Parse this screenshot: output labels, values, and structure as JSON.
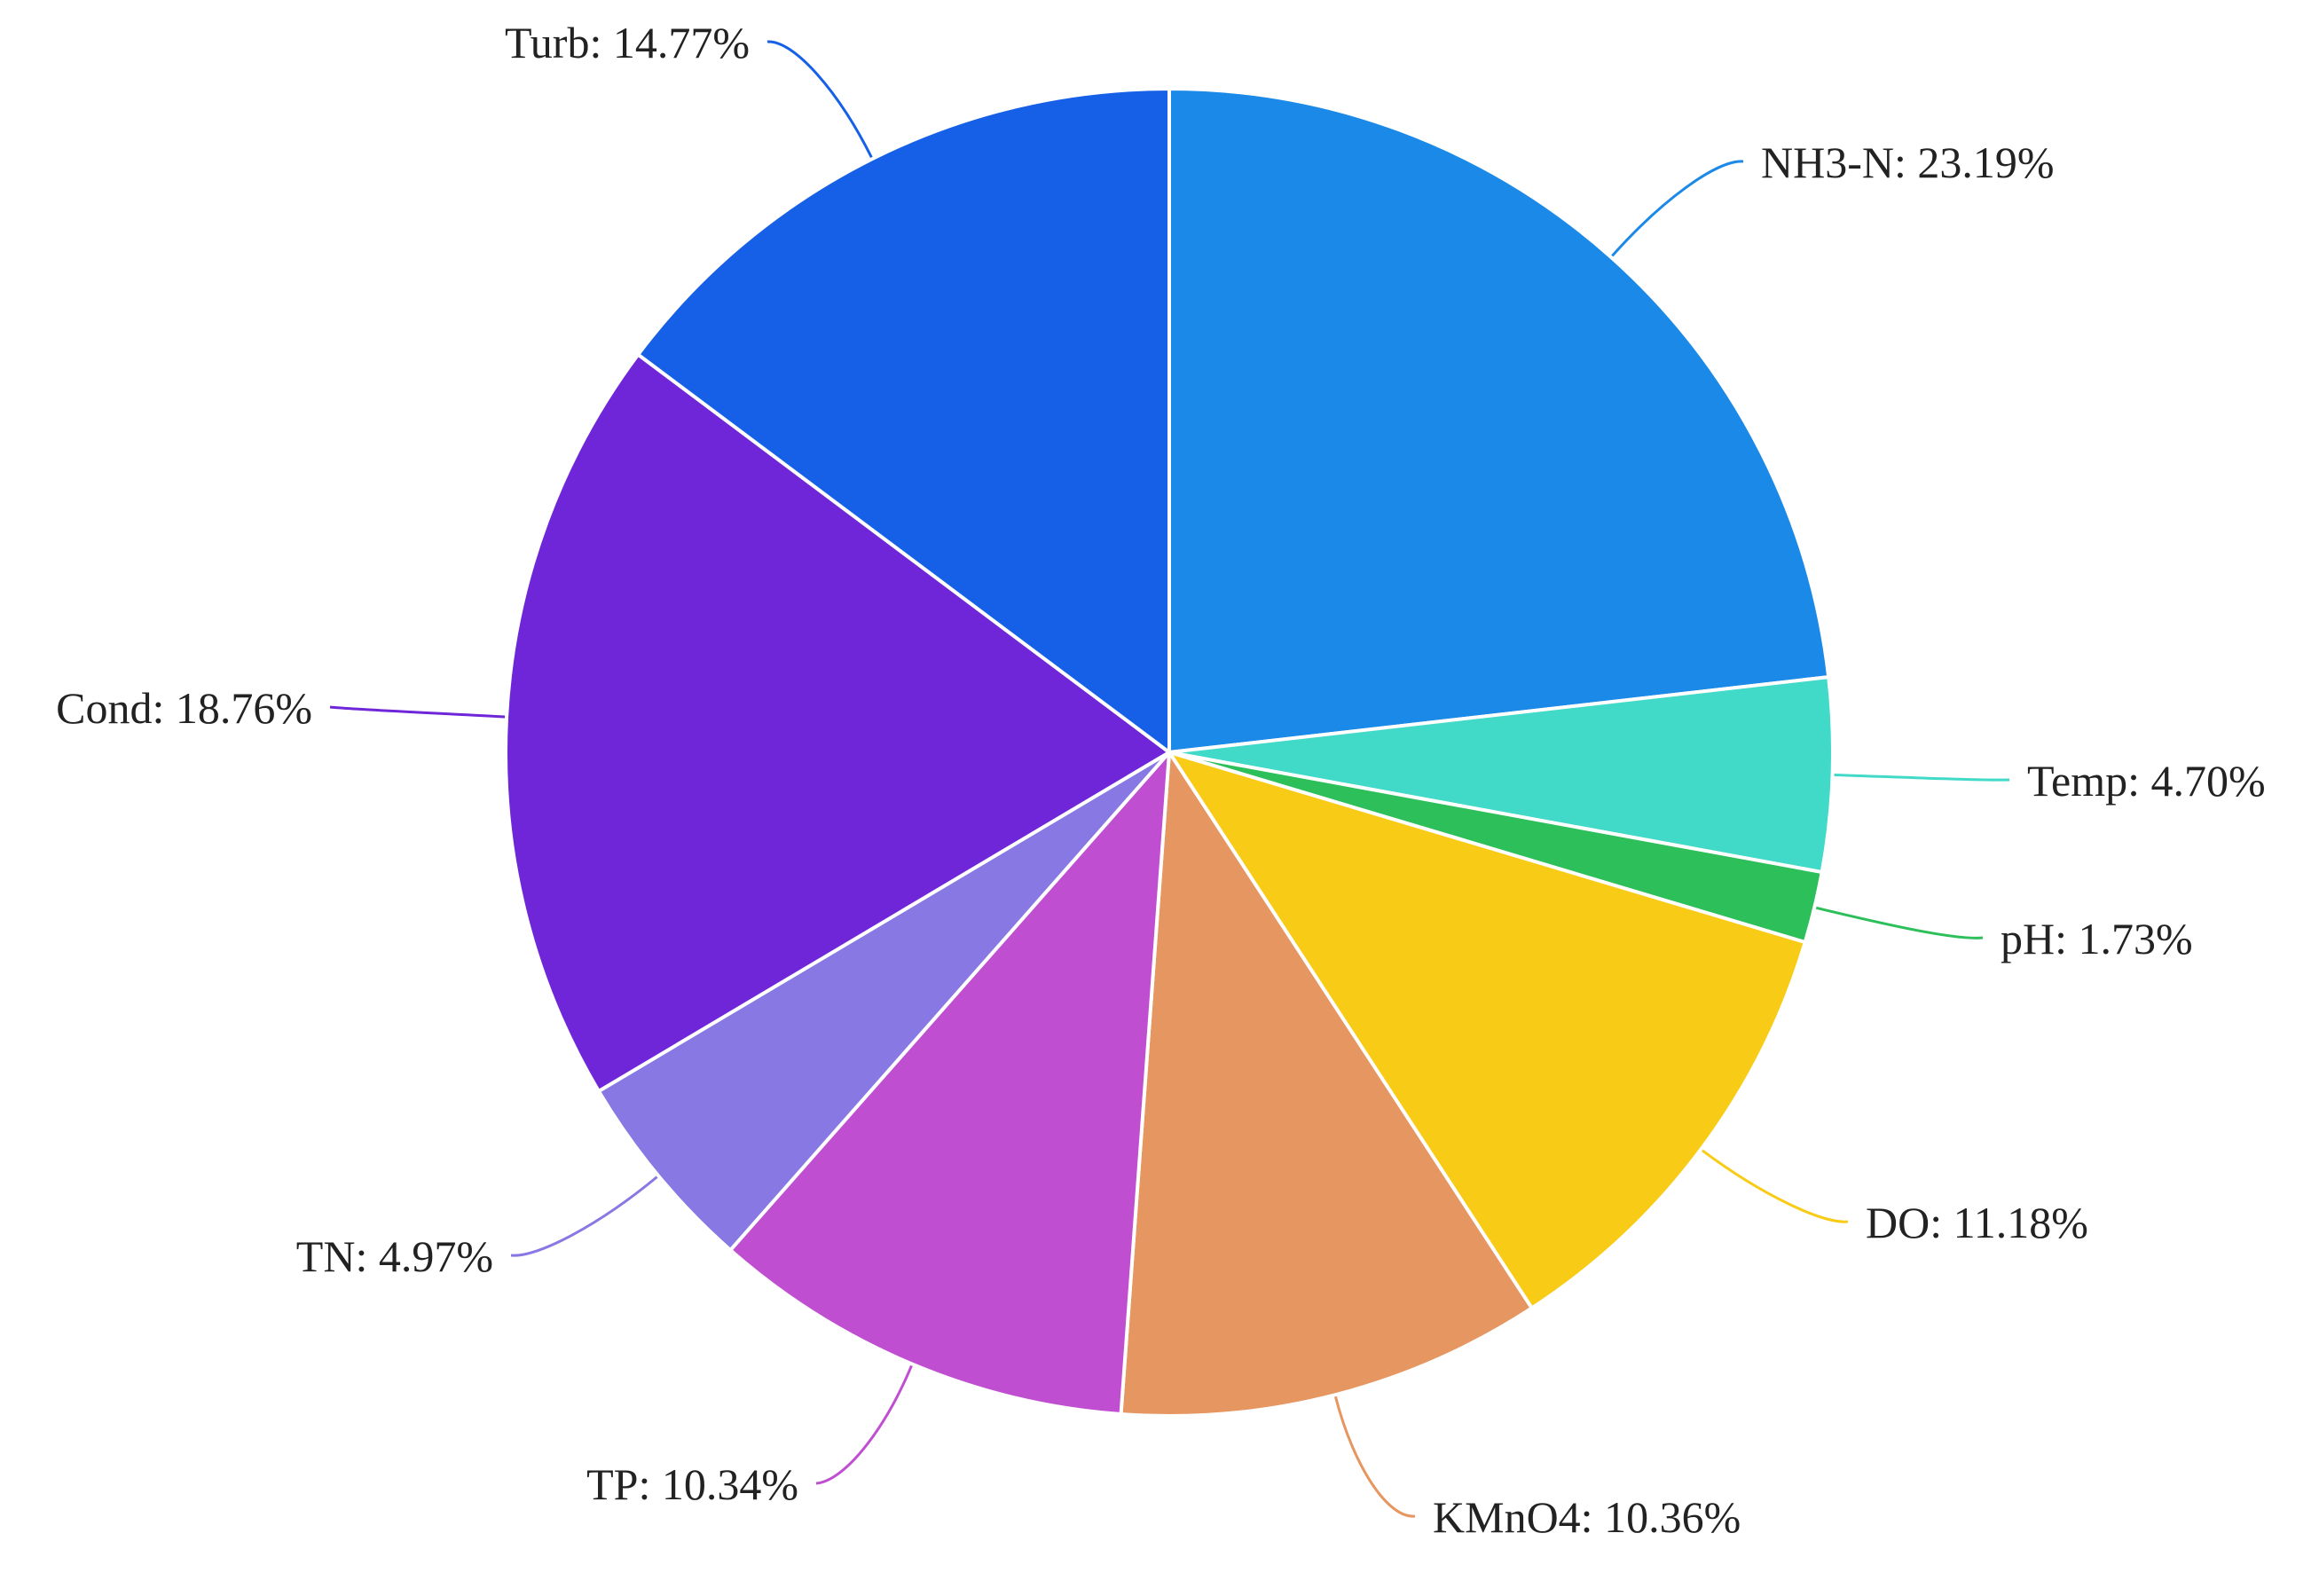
{
  "chart_data": {
    "type": "pie",
    "title": "",
    "start_angle_deg": 0,
    "direction": "clockwise",
    "slices": [
      {
        "label": "NH3-N",
        "value": 23.19,
        "display": "NH3-N: 23.19%",
        "color": "#1b89e8"
      },
      {
        "label": "Temp",
        "value": 4.7,
        "display": "Temp: 4.70%",
        "color": "#41d9c7"
      },
      {
        "label": "pH",
        "value": 1.73,
        "display": "pH: 1.73%",
        "color": "#2dbf5a"
      },
      {
        "label": "DO",
        "value": 11.18,
        "display": "DO: 11.18%",
        "color": "#f7cb16"
      },
      {
        "label": "KMnO4",
        "value": 10.36,
        "display": "KMnO4: 10.36%",
        "color": "#e69660"
      },
      {
        "label": "TP",
        "value": 10.34,
        "display": "TP: 10.34%",
        "color": "#c04ed1"
      },
      {
        "label": "TN",
        "value": 4.97,
        "display": "TN: 4.97%",
        "color": "#8878e3"
      },
      {
        "label": "Cond",
        "value": 18.76,
        "display": "Cond: 18.76%",
        "color": "#6f26d9"
      },
      {
        "label": "Turb",
        "value": 14.77,
        "display": "Turb: 14.77%",
        "color": "#1660e8"
      }
    ]
  }
}
